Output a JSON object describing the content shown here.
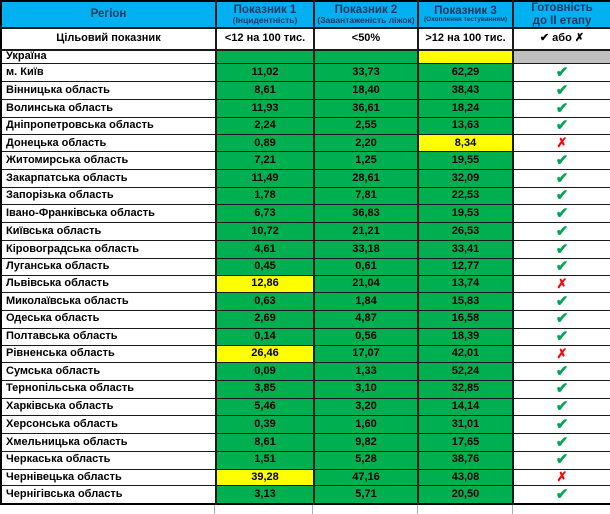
{
  "colors": {
    "header_bg": "#00B0F0",
    "header_text": "#1F3864",
    "pass_green": "#00B050",
    "warn_yellow": "#FFFF00",
    "neutral_gray": "#BFBFBF",
    "check_green": "#00A651",
    "cross_red": "#FF0000"
  },
  "glyphs": {
    "check": "✔",
    "cross": "✗"
  },
  "chart_data": {
    "type": "table",
    "columns": [
      {
        "title": "Регіон",
        "subtitle": ""
      },
      {
        "title": "Показник 1",
        "subtitle": "(Інцидентність)"
      },
      {
        "title": "Показник 2",
        "subtitle": "(Завантаженість ліжок)"
      },
      {
        "title": "Показник 3",
        "subtitle": "(Охоплення тестуванням)"
      },
      {
        "title": "Готовність",
        "subtitle": "до II етапу"
      }
    ],
    "target_row": {
      "label": "Цільовий показник",
      "v1": "<12 на 100 тис.",
      "v2": "<50%",
      "v3": ">12 на 100 тис.",
      "ready": "✔ або ✗"
    },
    "rows": [
      {
        "region": "Україна",
        "v1": "",
        "v2": "",
        "v3": "",
        "b1": "green",
        "b2": "green",
        "b3": "yellow",
        "ready": "none",
        "rb": "gray"
      },
      {
        "region": "м. Київ",
        "v1": "11,02",
        "v2": "33,73",
        "v3": "62,29",
        "b1": "green",
        "b2": "green",
        "b3": "green",
        "ready": "check",
        "rb": "white"
      },
      {
        "region": "Вінницька область",
        "v1": "8,61",
        "v2": "18,40",
        "v3": "38,43",
        "b1": "green",
        "b2": "green",
        "b3": "green",
        "ready": "check",
        "rb": "white"
      },
      {
        "region": "Волинська область",
        "v1": "11,93",
        "v2": "36,61",
        "v3": "18,24",
        "b1": "green",
        "b2": "green",
        "b3": "green",
        "ready": "check",
        "rb": "white"
      },
      {
        "region": "Дніпропетровська область",
        "v1": "2,24",
        "v2": "2,55",
        "v3": "13,63",
        "b1": "green",
        "b2": "green",
        "b3": "green",
        "ready": "check",
        "rb": "white"
      },
      {
        "region": "Донецька область",
        "v1": "0,89",
        "v2": "2,20",
        "v3": "8,34",
        "b1": "green",
        "b2": "green",
        "b3": "yellow",
        "ready": "cross",
        "rb": "white"
      },
      {
        "region": "Житомирська область",
        "v1": "7,21",
        "v2": "1,25",
        "v3": "19,55",
        "b1": "green",
        "b2": "green",
        "b3": "green",
        "ready": "check",
        "rb": "white"
      },
      {
        "region": "Закарпатська область",
        "v1": "11,49",
        "v2": "28,61",
        "v3": "32,09",
        "b1": "green",
        "b2": "green",
        "b3": "green",
        "ready": "check",
        "rb": "white"
      },
      {
        "region": "Запорізька область",
        "v1": "1,78",
        "v2": "7,81",
        "v3": "22,53",
        "b1": "green",
        "b2": "green",
        "b3": "green",
        "ready": "check",
        "rb": "white"
      },
      {
        "region": "Івано-Франківська область",
        "v1": "6,73",
        "v2": "36,83",
        "v3": "19,53",
        "b1": "green",
        "b2": "green",
        "b3": "green",
        "ready": "check",
        "rb": "white"
      },
      {
        "region": "Київська область",
        "v1": "10,72",
        "v2": "21,21",
        "v3": "26,53",
        "b1": "green",
        "b2": "green",
        "b3": "green",
        "ready": "check",
        "rb": "white"
      },
      {
        "region": "Кіровоградська область",
        "v1": "4,61",
        "v2": "33,18",
        "v3": "33,41",
        "b1": "green",
        "b2": "green",
        "b3": "green",
        "ready": "check",
        "rb": "white"
      },
      {
        "region": "Луганська область",
        "v1": "0,45",
        "v2": "0,61",
        "v3": "12,77",
        "b1": "green",
        "b2": "green",
        "b3": "green",
        "ready": "check",
        "rb": "white"
      },
      {
        "region": "Львівська область",
        "v1": "12,86",
        "v2": "21,04",
        "v3": "13,74",
        "b1": "yellow",
        "b2": "green",
        "b3": "green",
        "ready": "cross",
        "rb": "white"
      },
      {
        "region": "Миколаївська область",
        "v1": "0,63",
        "v2": "1,84",
        "v3": "15,83",
        "b1": "green",
        "b2": "green",
        "b3": "green",
        "ready": "check",
        "rb": "white"
      },
      {
        "region": "Одеська область",
        "v1": "2,69",
        "v2": "4,87",
        "v3": "16,58",
        "b1": "green",
        "b2": "green",
        "b3": "green",
        "ready": "check",
        "rb": "white"
      },
      {
        "region": "Полтавська область",
        "v1": "0,14",
        "v2": "0,56",
        "v3": "18,39",
        "b1": "green",
        "b2": "green",
        "b3": "green",
        "ready": "check",
        "rb": "white"
      },
      {
        "region": "Рівненська область",
        "v1": "26,46",
        "v2": "17,07",
        "v3": "42,01",
        "b1": "yellow",
        "b2": "green",
        "b3": "green",
        "ready": "cross",
        "rb": "white"
      },
      {
        "region": "Сумська область",
        "v1": "0,09",
        "v2": "1,33",
        "v3": "52,24",
        "b1": "green",
        "b2": "green",
        "b3": "green",
        "ready": "check",
        "rb": "white"
      },
      {
        "region": "Тернопільська область",
        "v1": "3,85",
        "v2": "3,10",
        "v3": "32,85",
        "b1": "green",
        "b2": "green",
        "b3": "green",
        "ready": "check",
        "rb": "white"
      },
      {
        "region": "Харківська область",
        "v1": "5,46",
        "v2": "3,20",
        "v3": "14,14",
        "b1": "green",
        "b2": "green",
        "b3": "green",
        "ready": "check",
        "rb": "white"
      },
      {
        "region": "Херсонська область",
        "v1": "0,39",
        "v2": "1,60",
        "v3": "31,01",
        "b1": "green",
        "b2": "green",
        "b3": "green",
        "ready": "check",
        "rb": "white"
      },
      {
        "region": "Хмельницька область",
        "v1": "8,61",
        "v2": "9,82",
        "v3": "17,65",
        "b1": "green",
        "b2": "green",
        "b3": "green",
        "ready": "check",
        "rb": "white"
      },
      {
        "region": "Черкаська область",
        "v1": "1,51",
        "v2": "5,28",
        "v3": "38,76",
        "b1": "green",
        "b2": "green",
        "b3": "green",
        "ready": "check",
        "rb": "white"
      },
      {
        "region": "Чернівецька область",
        "v1": "39,28",
        "v2": "47,16",
        "v3": "43,08",
        "b1": "yellow",
        "b2": "green",
        "b3": "green",
        "ready": "cross",
        "rb": "white"
      },
      {
        "region": "Чернігівська область",
        "v1": "3,13",
        "v2": "5,71",
        "v3": "20,50",
        "b1": "green",
        "b2": "green",
        "b3": "green",
        "ready": "check",
        "rb": "white"
      }
    ]
  }
}
